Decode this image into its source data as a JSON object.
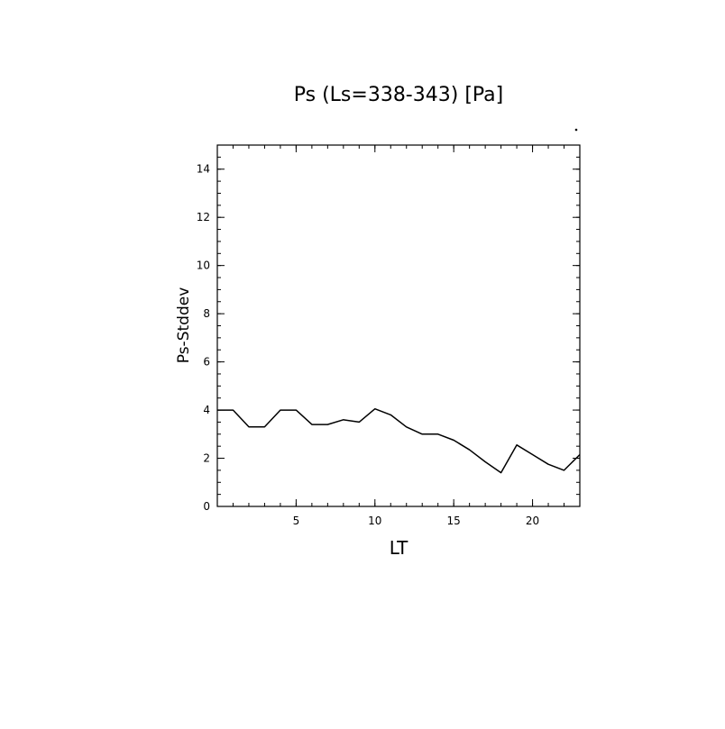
{
  "chart_data": {
    "type": "line",
    "title": "Ps (Ls=338-343) [Pa]",
    "xlabel": "LT",
    "ylabel": "Ps-Stddev",
    "xlim": [
      0,
      23
    ],
    "ylim": [
      0,
      15
    ],
    "xticks": [
      5,
      10,
      15,
      20
    ],
    "yticks": [
      0,
      2,
      4,
      6,
      8,
      10,
      12,
      14
    ],
    "x_minor_step": 1,
    "y_minor_step": 0.5,
    "grid": false,
    "legend": "none",
    "line_color": "#000000",
    "series": [
      {
        "x": [
          0,
          1,
          2,
          3,
          4,
          5,
          6,
          7,
          8,
          9,
          10,
          11,
          12,
          13,
          14,
          15,
          16,
          17,
          18,
          19,
          20,
          21,
          22,
          23
        ],
        "values": [
          4.0,
          4.0,
          3.3,
          3.3,
          4.0,
          4.0,
          3.4,
          3.4,
          3.6,
          3.5,
          4.05,
          3.8,
          3.3,
          3.0,
          3.0,
          2.75,
          2.35,
          1.85,
          1.4,
          2.55,
          2.15,
          1.75,
          1.5,
          2.15
        ]
      }
    ]
  }
}
